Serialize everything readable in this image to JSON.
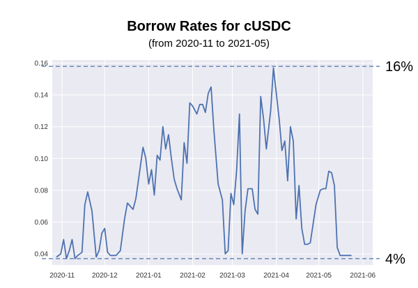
{
  "chart_data": {
    "type": "line",
    "title": "Borrow Rates for cUSDC",
    "subtitle": "(from 2020-11 to 2021-05)",
    "xlabel": "",
    "ylabel": "",
    "grid": true,
    "x_ticks": [
      "2020-11",
      "2020-12",
      "2021-01",
      "2021-02",
      "2021-03",
      "2021-04",
      "2021-05",
      "2021-06"
    ],
    "y_ticks": [
      "0.04",
      "0.06",
      "0.08",
      "0.10",
      "0.12",
      "0.14",
      "0.16"
    ],
    "ylim": [
      0.033,
      0.162
    ],
    "xlim": [
      "2020-10-25",
      "2021-06-08"
    ],
    "series": [
      {
        "color": "#4c72b0",
        "x": [
          "2020-10-28",
          "2020-10-31",
          "2020-11-02",
          "2020-11-04",
          "2020-11-06",
          "2020-11-08",
          "2020-11-10",
          "2020-11-12",
          "2020-11-15",
          "2020-11-17",
          "2020-11-19",
          "2020-11-22",
          "2020-11-25",
          "2020-11-27",
          "2020-11-29",
          "2020-12-01",
          "2020-12-03",
          "2020-12-05",
          "2020-12-07",
          "2020-12-09",
          "2020-12-12",
          "2020-12-15",
          "2020-12-17",
          "2020-12-19",
          "2020-12-21",
          "2020-12-23",
          "2020-12-25",
          "2020-12-28",
          "2020-12-30",
          "2021-01-01",
          "2021-01-03",
          "2021-01-05",
          "2021-01-07",
          "2021-01-09",
          "2021-01-11",
          "2021-01-13",
          "2021-01-15",
          "2021-01-17",
          "2021-01-19",
          "2021-01-21",
          "2021-01-24",
          "2021-01-26",
          "2021-01-28",
          "2021-01-30",
          "2021-02-01",
          "2021-02-04",
          "2021-02-06",
          "2021-02-08",
          "2021-02-10",
          "2021-02-12",
          "2021-02-14",
          "2021-02-16",
          "2021-02-19",
          "2021-02-22",
          "2021-02-24",
          "2021-02-26",
          "2021-02-28",
          "2021-03-02",
          "2021-03-04",
          "2021-03-06",
          "2021-03-08",
          "2021-03-10",
          "2021-03-12",
          "2021-03-15",
          "2021-03-17",
          "2021-03-19",
          "2021-03-21",
          "2021-03-23",
          "2021-03-25",
          "2021-03-28",
          "2021-03-30",
          "2021-04-01",
          "2021-04-03",
          "2021-04-05",
          "2021-04-07",
          "2021-04-09",
          "2021-04-11",
          "2021-04-13",
          "2021-04-15",
          "2021-04-17",
          "2021-04-19",
          "2021-04-21",
          "2021-04-23",
          "2021-04-25",
          "2021-04-27",
          "2021-04-29",
          "2021-05-02",
          "2021-05-04",
          "2021-05-06",
          "2021-05-08",
          "2021-05-10",
          "2021-05-12",
          "2021-05-14",
          "2021-05-16",
          "2021-05-18",
          "2021-05-20",
          "2021-05-22",
          "2021-05-24"
        ],
        "y": [
          0.038,
          0.04,
          0.049,
          0.037,
          0.042,
          0.049,
          0.037,
          0.039,
          0.041,
          0.071,
          0.079,
          0.067,
          0.038,
          0.042,
          0.053,
          0.056,
          0.041,
          0.039,
          0.039,
          0.039,
          0.042,
          0.062,
          0.072,
          0.07,
          0.068,
          0.075,
          0.088,
          0.107,
          0.1,
          0.084,
          0.093,
          0.077,
          0.102,
          0.099,
          0.12,
          0.106,
          0.115,
          0.1,
          0.087,
          0.081,
          0.074,
          0.11,
          0.097,
          0.135,
          0.133,
          0.128,
          0.134,
          0.134,
          0.129,
          0.141,
          0.145,
          0.118,
          0.084,
          0.074,
          0.04,
          0.042,
          0.078,
          0.071,
          0.092,
          0.128,
          0.04,
          0.067,
          0.081,
          0.081,
          0.068,
          0.065,
          0.139,
          0.125,
          0.106,
          0.13,
          0.157,
          0.141,
          0.125,
          0.105,
          0.111,
          0.086,
          0.12,
          0.111,
          0.062,
          0.083,
          0.056,
          0.046,
          0.046,
          0.047,
          0.059,
          0.071,
          0.08,
          0.081,
          0.081,
          0.092,
          0.091,
          0.083,
          0.044,
          0.039,
          0.039,
          0.039,
          0.039,
          0.039
        ]
      }
    ],
    "reference_lines": [
      {
        "y": 0.158,
        "label": "16%",
        "style": "dashed",
        "color": "#4c72b0"
      },
      {
        "y": 0.037,
        "label": "4%",
        "style": "dashed",
        "color": "#4c72b0"
      }
    ]
  }
}
